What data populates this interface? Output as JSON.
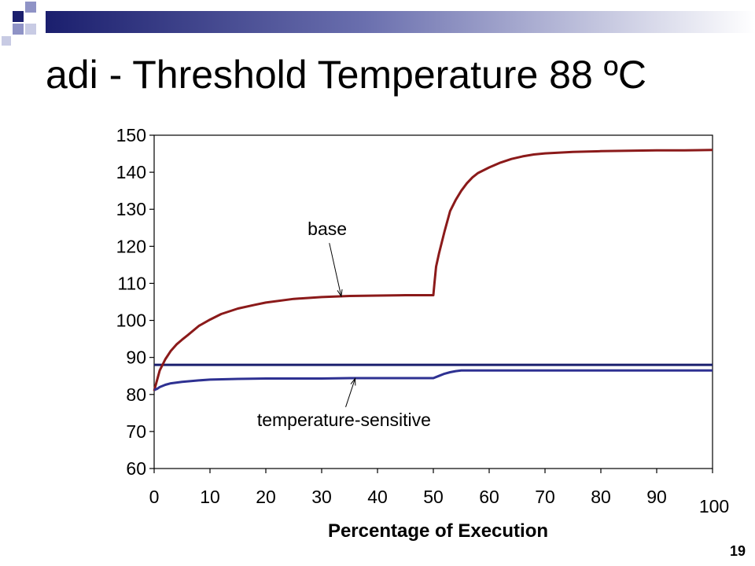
{
  "slide": {
    "title": "adi - Threshold Temperature 88 ºC",
    "number": "19"
  },
  "chart_data": {
    "type": "line",
    "title": "",
    "xlabel": "Percentage of Execution",
    "ylabel": "",
    "xlim": [
      0,
      100
    ],
    "ylim": [
      60,
      150
    ],
    "x_ticks": [
      0,
      10,
      20,
      30,
      40,
      50,
      60,
      70,
      80,
      90,
      100
    ],
    "y_ticks": [
      60,
      70,
      80,
      90,
      100,
      110,
      120,
      130,
      140,
      150
    ],
    "grid": false,
    "legend": "none",
    "series": [
      {
        "name": "base",
        "color": "#8B1A1A",
        "x": [
          0,
          1,
          2,
          3,
          4,
          5,
          6,
          8,
          10,
          12,
          15,
          18,
          20,
          25,
          30,
          35,
          40,
          45,
          50,
          50.2,
          50.5,
          51,
          52,
          53,
          54,
          55,
          56,
          57,
          58,
          60,
          62,
          64,
          66,
          68,
          70,
          75,
          80,
          85,
          90,
          95,
          100
        ],
        "y": [
          81,
          86.5,
          89.5,
          91.8,
          93.5,
          94.8,
          96,
          98.5,
          100.2,
          101.7,
          103.2,
          104.2,
          104.8,
          105.8,
          106.3,
          106.6,
          106.7,
          106.8,
          106.8,
          110,
          114.5,
          118,
          124,
          129.5,
          132.5,
          135,
          137,
          138.6,
          139.8,
          141.3,
          142.6,
          143.6,
          144.3,
          144.8,
          145.1,
          145.5,
          145.7,
          145.8,
          145.9,
          145.9,
          146
        ]
      },
      {
        "name": "temperature-sensitive",
        "color": "#2E3192",
        "x": [
          0,
          0.5,
          1,
          2,
          3,
          5,
          8,
          10,
          15,
          20,
          25,
          30,
          35,
          40,
          45,
          50,
          51,
          52,
          53,
          54,
          55,
          60,
          70,
          80,
          90,
          100
        ],
        "y": [
          81.2,
          81.5,
          82,
          82.6,
          83,
          83.4,
          83.8,
          84,
          84.2,
          84.3,
          84.3,
          84.3,
          84.4,
          84.4,
          84.4,
          84.4,
          85,
          85.6,
          86,
          86.3,
          86.5,
          86.5,
          86.5,
          86.5,
          86.5,
          86.5
        ]
      }
    ],
    "threshold": {
      "y": 88,
      "color": "#1B1F6E"
    },
    "annotations": [
      {
        "text": "base",
        "text_at": [
          31,
          123
        ],
        "arrow_to": [
          33.5,
          106.5
        ]
      },
      {
        "text": "temperature-sensitive",
        "text_at": [
          34,
          71.5
        ],
        "arrow_to": [
          36,
          84.3
        ]
      }
    ]
  }
}
